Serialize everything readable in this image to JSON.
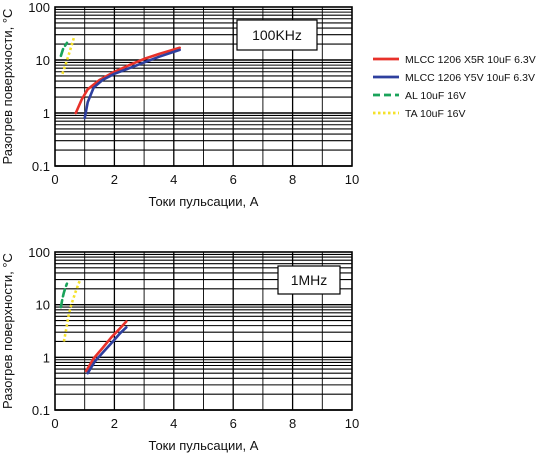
{
  "legend": [
    {
      "label": "MLCC 1206 X5R 10uF 6.3V",
      "color": "#e8312a",
      "dash": "solid"
    },
    {
      "label": "MLCC 1206 Y5V 10uF 6.3V",
      "color": "#2e3f9e",
      "dash": "solid"
    },
    {
      "label": "AL 10uF 16V",
      "color": "#1aa35a",
      "dash": "dashed"
    },
    {
      "label": "TA 10uF 16V",
      "color": "#f4e12a",
      "dash": "dotted"
    }
  ],
  "chart_data": [
    {
      "type": "line",
      "annotation": "100KHz",
      "xlabel": "Токи пульсации, А",
      "ylabel": "Разогрев поверхности, °C",
      "xlim": [
        0,
        10
      ],
      "ylim": [
        0.1,
        100
      ],
      "yscale": "log",
      "grid": true,
      "xticks": [
        "0",
        "2",
        "4",
        "6",
        "8",
        "10"
      ],
      "yticks": [
        "0.1",
        "1",
        "10",
        "100"
      ],
      "series": [
        {
          "name": "MLCC 1206 X5R 10uF 6.3V",
          "color": "#e8312a",
          "x": [
            0.7,
            0.9,
            1.1,
            1.5,
            2.0,
            2.5,
            3.0,
            3.5,
            4.2
          ],
          "y": [
            1.0,
            1.8,
            2.8,
            4.2,
            6.0,
            8.0,
            10.5,
            13.0,
            17.0
          ]
        },
        {
          "name": "MLCC 1206 Y5V 10uF 6.3V",
          "color": "#2e3f9e",
          "x": [
            1.0,
            1.1,
            1.3,
            1.6,
            2.0,
            2.5,
            3.0,
            3.5,
            4.2
          ],
          "y": [
            0.8,
            1.6,
            3.0,
            4.2,
            5.5,
            7.0,
            9.0,
            11.5,
            15.5
          ]
        },
        {
          "name": "AL 10uF 16V",
          "color": "#1aa35a",
          "x": [
            0.2,
            0.27,
            0.35,
            0.4
          ],
          "y": [
            12,
            16,
            19,
            21
          ]
        },
        {
          "name": "TA 10uF 16V",
          "color": "#f4e12a",
          "x": [
            0.25,
            0.35,
            0.45,
            0.55,
            0.65
          ],
          "y": [
            5.5,
            8,
            12,
            18,
            28
          ]
        }
      ]
    },
    {
      "type": "line",
      "annotation": "1MHz",
      "xlabel": "Токи пульсации, А",
      "ylabel": "Разогрев поверхности, °C",
      "xlim": [
        0,
        10
      ],
      "ylim": [
        0.1,
        100
      ],
      "yscale": "log",
      "grid": true,
      "xticks": [
        "0",
        "2",
        "4",
        "6",
        "8",
        "10"
      ],
      "yticks": [
        "0.1",
        "1",
        "10",
        "100"
      ],
      "series": [
        {
          "name": "MLCC 1206 X5R 10uF 6.3V",
          "color": "#e8312a",
          "x": [
            1.05,
            1.3,
            1.6,
            1.9,
            2.2,
            2.4
          ],
          "y": [
            0.55,
            0.95,
            1.5,
            2.4,
            3.6,
            4.8
          ]
        },
        {
          "name": "MLCC 1206 Y5V 10uF 6.3V",
          "color": "#2e3f9e",
          "x": [
            1.1,
            1.35,
            1.65,
            1.95,
            2.2,
            2.4
          ],
          "y": [
            0.5,
            0.85,
            1.3,
            2.0,
            2.9,
            3.7
          ]
        },
        {
          "name": "AL 10uF 16V",
          "color": "#1aa35a",
          "x": [
            0.2,
            0.25,
            0.3,
            0.35,
            0.4
          ],
          "y": [
            9,
            13,
            17,
            21,
            25
          ]
        },
        {
          "name": "TA 10uF 16V",
          "color": "#f4e12a",
          "x": [
            0.3,
            0.38,
            0.45,
            0.55,
            0.7,
            0.85
          ],
          "y": [
            2.0,
            3.5,
            6.0,
            10,
            18,
            30
          ]
        }
      ]
    }
  ]
}
